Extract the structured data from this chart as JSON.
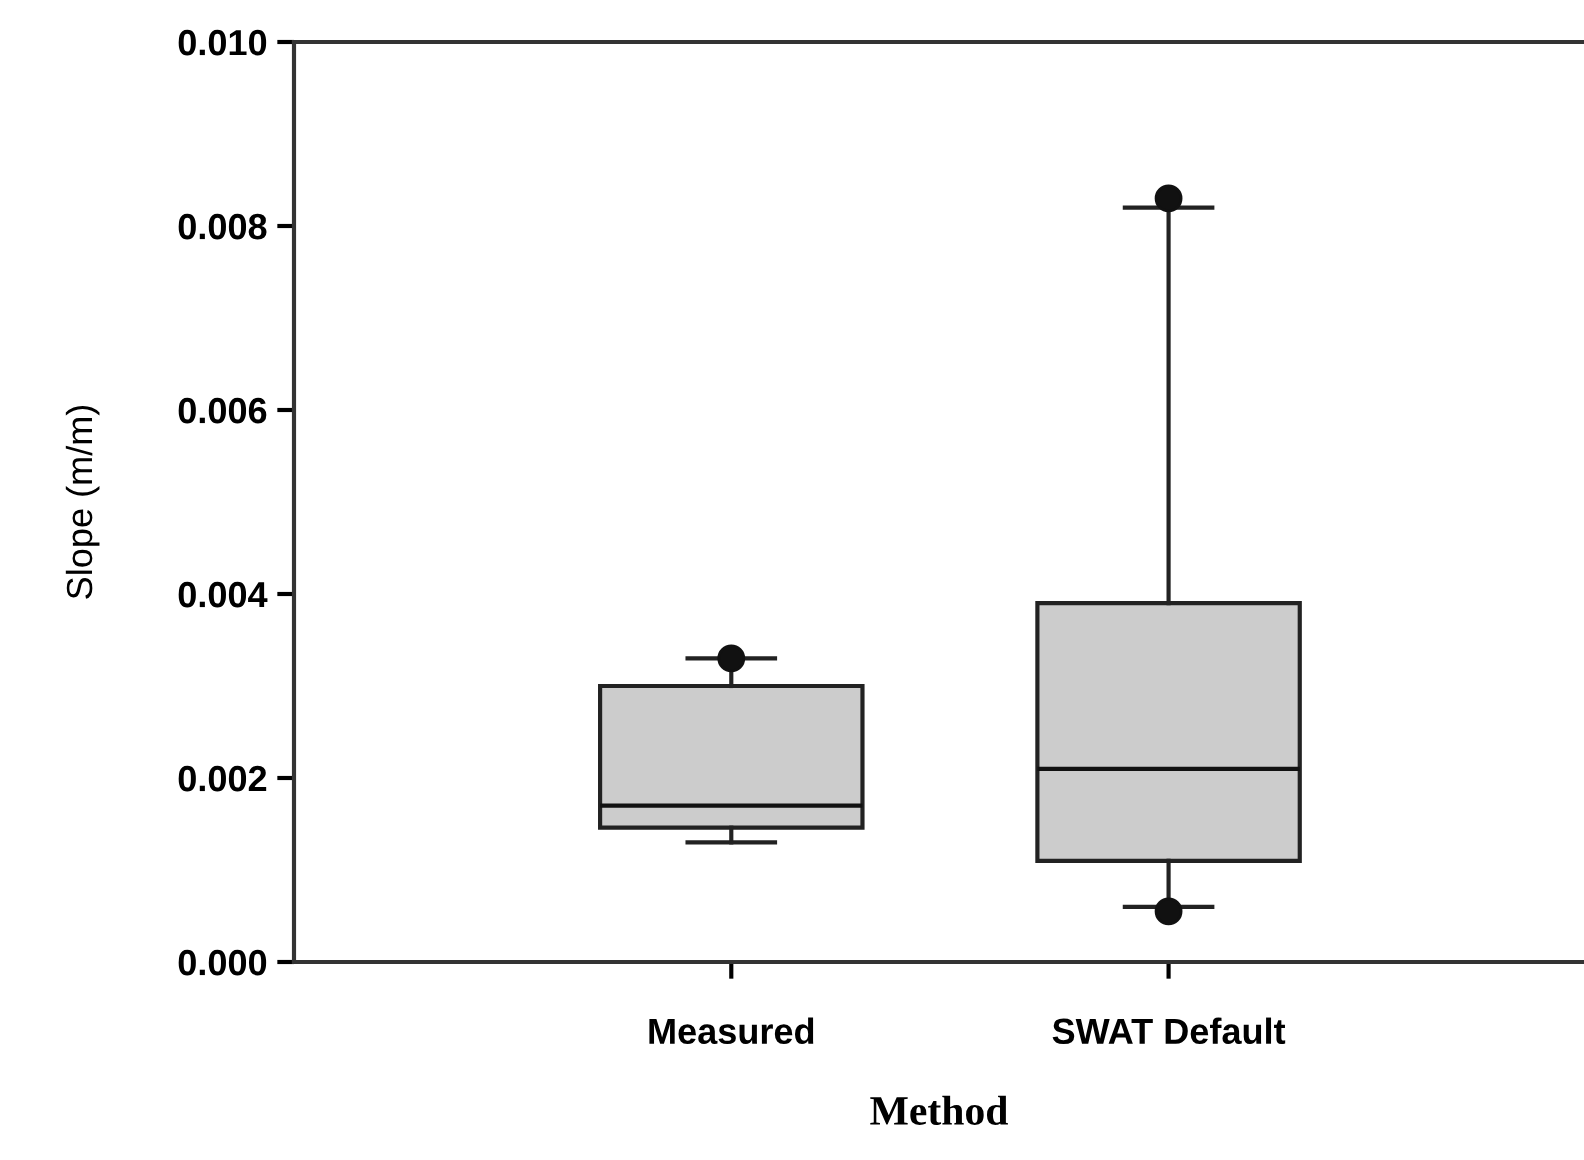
{
  "chart_data": {
    "type": "box",
    "xlabel": "Method",
    "ylabel": "Slope (m/m)",
    "categories": [
      "Measured",
      "SWAT Default"
    ],
    "boxes": [
      {
        "low": 0.0013,
        "q1": 0.00146,
        "median": 0.0017,
        "q3": 0.003,
        "high": 0.0033,
        "outliers": [
          0.0033
        ]
      },
      {
        "low": 0.0006,
        "q1": 0.0011,
        "median": 0.0021,
        "q3": 0.0039,
        "high": 0.0082,
        "outliers": [
          0.0083,
          0.00055
        ]
      }
    ],
    "color": "#cccccc",
    "ylim": [
      0,
      0.01
    ],
    "yticks": [
      {
        "value": 0,
        "label": "0.000"
      },
      {
        "value": 0.002,
        "label": "0.002"
      },
      {
        "value": 0.004,
        "label": "0.004"
      },
      {
        "value": 0.006,
        "label": "0.006"
      },
      {
        "value": 0.008,
        "label": "0.008"
      },
      {
        "value": 0.01,
        "label": "0.010"
      }
    ],
    "grid": false,
    "legend": false
  }
}
